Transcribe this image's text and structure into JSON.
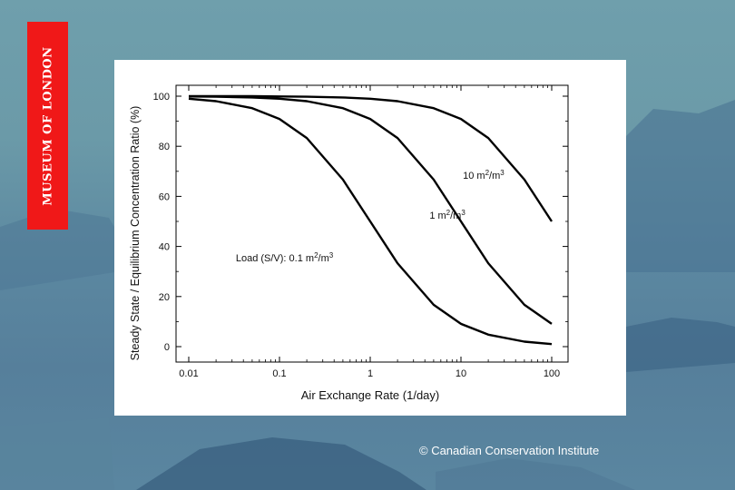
{
  "logo_text": "MUSEUM OF LONDON",
  "credit": "© Canadian Conservation Institute",
  "colors": {
    "logo_red": "#f01818",
    "panel": "#ffffff",
    "curve": "#000000"
  },
  "chart_data": {
    "type": "line",
    "xlabel": "Air Exchange Rate (1/day)",
    "ylabel": "Steady State / Equilibrium Concentration Ratio (%)",
    "xscale": "log",
    "xlim": [
      0.01,
      100
    ],
    "ylim": [
      0,
      100
    ],
    "x_ticks": [
      0.01,
      0.1,
      1,
      10,
      100
    ],
    "x_tick_labels": [
      "0.01",
      "0.1",
      "1",
      "10",
      "100"
    ],
    "y_ticks": [
      0,
      20,
      40,
      60,
      80,
      100
    ],
    "y_tick_labels": [
      "0",
      "20",
      "40",
      "60",
      "80",
      "100"
    ],
    "grid": false,
    "x": [
      0.01,
      0.02,
      0.05,
      0.1,
      0.2,
      0.5,
      1,
      2,
      5,
      10,
      20,
      50,
      100
    ],
    "series": [
      {
        "values": [
          99.0,
          98.0,
          95.2,
          90.9,
          83.3,
          66.7,
          50.0,
          33.3,
          16.7,
          9.1,
          4.8,
          2.0,
          1.0
        ]
      },
      {
        "values": [
          99.9,
          99.8,
          99.5,
          99.0,
          98.0,
          95.2,
          90.9,
          83.3,
          66.7,
          50.0,
          33.3,
          16.7,
          9.1
        ]
      },
      {
        "values": [
          100.0,
          100.0,
          100.0,
          99.9,
          99.8,
          99.5,
          99.0,
          98.0,
          95.2,
          90.9,
          83.3,
          66.7,
          50.0
        ]
      }
    ],
    "annotations": [
      {
        "prefix": "Load (S/V):  0.1 m",
        "sup1": "2",
        "mid": "/m",
        "sup2": "3",
        "x": 0.033,
        "y": 34
      },
      {
        "prefix": "1 m",
        "sup1": "2",
        "mid": "/m",
        "sup2": "3",
        "x": 4.5,
        "y": 51
      },
      {
        "prefix": "10 m",
        "sup1": "2",
        "mid": "/m",
        "sup2": "3",
        "x": 10.5,
        "y": 67
      }
    ]
  }
}
